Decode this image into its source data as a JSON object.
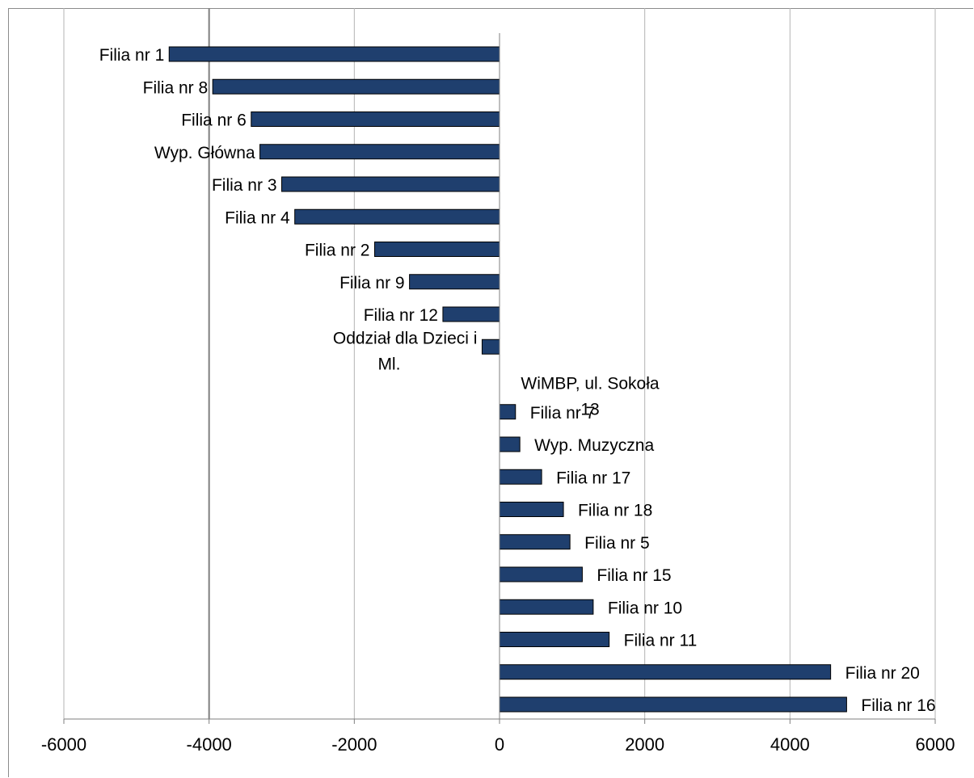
{
  "chart_data": {
    "type": "bar",
    "orientation": "horizontal",
    "categories": [
      "Filia nr 1",
      "Filia nr 8",
      "Filia nr 6",
      "Wyp. Główna",
      "Filia nr 3",
      "Filia nr 4",
      "Filia nr 2",
      "Filia nr 9",
      "Filia nr 12",
      "Oddział dla Dzieci i Ml.",
      "WiMBP, ul. Sokoła 13",
      "Filia nr 7",
      "Wyp. Muzyczna",
      "Filia nr 17",
      "Filia nr 18",
      "Filia nr 5",
      "Filia nr 15",
      "Filia nr 10",
      "Filia nr 11",
      "Filia nr 20",
      "Filia nr 16"
    ],
    "label_lines": [
      [
        "Filia nr 1"
      ],
      [
        "Filia nr 8"
      ],
      [
        "Filia nr 6"
      ],
      [
        "Wyp. Główna"
      ],
      [
        "Filia nr 3"
      ],
      [
        "Filia nr 4"
      ],
      [
        "Filia nr 2"
      ],
      [
        "Filia nr 9"
      ],
      [
        "Filia nr 12"
      ],
      [
        "Oddział dla Dzieci i",
        "Ml."
      ],
      [
        "WiMBP, ul. Sokoła",
        "13"
      ],
      [
        "Filia nr 7"
      ],
      [
        "Wyp. Muzyczna"
      ],
      [
        "Filia nr 17"
      ],
      [
        "Filia nr 18"
      ],
      [
        "Filia nr 5"
      ],
      [
        "Filia nr 15"
      ],
      [
        "Filia nr 10"
      ],
      [
        "Filia nr 11"
      ],
      [
        "Filia nr 20"
      ],
      [
        "Filia nr 16"
      ]
    ],
    "values": [
      -4550,
      -3950,
      -3420,
      -3300,
      -3000,
      -2820,
      -1720,
      -1240,
      -780,
      -240,
      0,
      220,
      280,
      580,
      880,
      970,
      1140,
      1290,
      1510,
      4560,
      4780
    ],
    "title": "",
    "xlabel": "",
    "ylabel": "",
    "xlim": [
      -6000,
      6000
    ],
    "ticks": [
      "-6000",
      "-4000",
      "-2000",
      "0",
      "2000",
      "4000",
      "6000"
    ],
    "grid": true,
    "bar_color": "#1f3f6e"
  }
}
